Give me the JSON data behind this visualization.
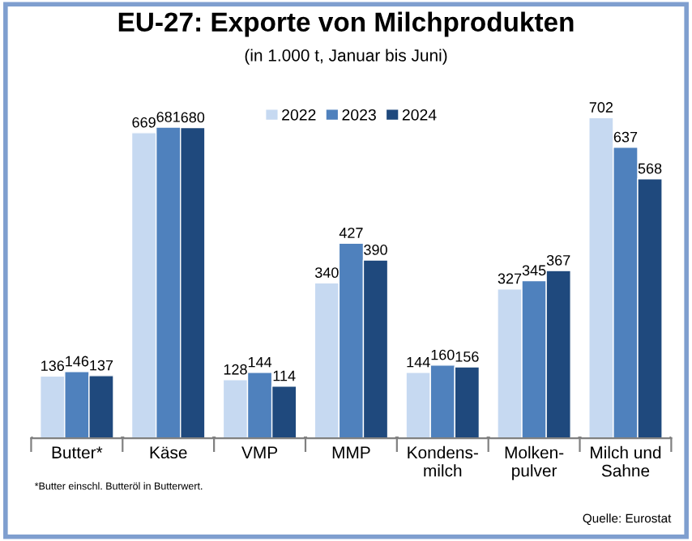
{
  "chart_data": {
    "type": "bar",
    "title": "EU-27: Exporte von Milchprodukten",
    "subtitle": "(in 1.000 t, Januar bis Juni)",
    "categories": [
      "Butter*",
      "Käse",
      "VMP",
      "MMP",
      "Kondens-\nmilch",
      "Molken-\npulver",
      "Milch und\nSahne"
    ],
    "series": [
      {
        "name": "2022",
        "color": "#c6d9f1",
        "values": [
          136,
          669,
          128,
          340,
          144,
          327,
          702
        ]
      },
      {
        "name": "2023",
        "color": "#4f81bd",
        "values": [
          146,
          681,
          144,
          427,
          160,
          345,
          637
        ]
      },
      {
        "name": "2024",
        "color": "#1f497d",
        "values": [
          137,
          680,
          114,
          390,
          156,
          367,
          568
        ]
      }
    ],
    "data_labels": true,
    "legend": "top",
    "grid": false,
    "annotations": [
      "*Butter einschl. Butteröl in Butterwert.",
      "Quelle: Eurostat"
    ]
  }
}
